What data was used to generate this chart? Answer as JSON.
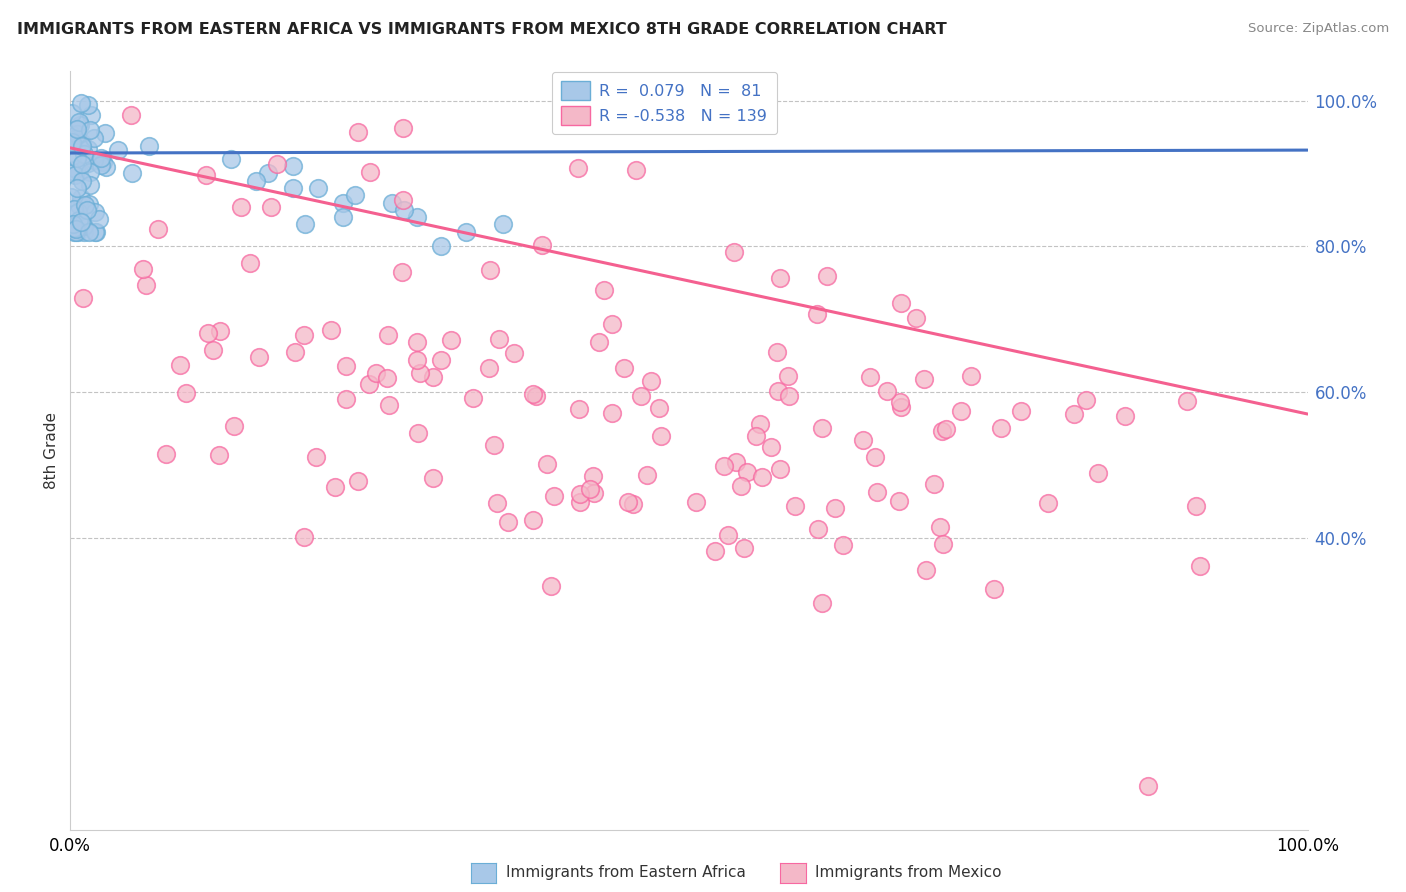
{
  "title": "IMMIGRANTS FROM EASTERN AFRICA VS IMMIGRANTS FROM MEXICO 8TH GRADE CORRELATION CHART",
  "source": "Source: ZipAtlas.com",
  "ylabel": "8th Grade",
  "blue_R": 0.079,
  "blue_N": 81,
  "pink_R": -0.538,
  "pink_N": 139,
  "legend_label_blue": "Immigrants from Eastern Africa",
  "legend_label_pink": "Immigrants from Mexico",
  "blue_color": "#a8c8e8",
  "blue_edge_color": "#6baed6",
  "pink_color": "#f4b8c8",
  "pink_edge_color": "#f768a1",
  "blue_line_color": "#4472c4",
  "pink_line_color": "#f46090",
  "background_color": "#ffffff",
  "xlim": [
    0.0,
    1.0
  ],
  "ylim": [
    0.0,
    1.04
  ],
  "ytick_vals": [
    1.0,
    0.8,
    0.6,
    0.4
  ],
  "blue_line_start_y": 0.928,
  "blue_line_end_y": 0.932,
  "pink_line_start_y": 0.935,
  "pink_line_end_y": 0.57
}
